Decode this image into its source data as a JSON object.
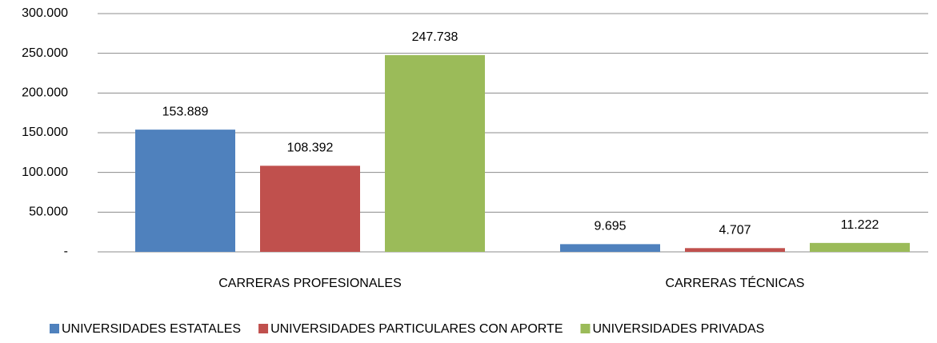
{
  "chart_data": {
    "type": "bar",
    "categories": [
      "CARRERAS PROFESIONALES",
      "CARRERAS TÉCNICAS"
    ],
    "series": [
      {
        "name": "UNIVERSIDADES ESTATALES",
        "color": "#4f81bd",
        "values": [
          153889,
          9695
        ],
        "value_labels": [
          "153.889",
          "9.695"
        ]
      },
      {
        "name": "UNIVERSIDADES PARTICULARES CON APORTE",
        "color": "#c0504d",
        "values": [
          108392,
          4707
        ],
        "value_labels": [
          "108.392",
          "4.707"
        ]
      },
      {
        "name": "UNIVERSIDADES PRIVADAS",
        "color": "#9bbb59",
        "values": [
          247738,
          11222
        ],
        "value_labels": [
          "247.738",
          "11.222"
        ]
      }
    ],
    "ylim": [
      0,
      300000
    ],
    "yticks": [
      {
        "value": 0,
        "label": "-"
      },
      {
        "value": 50000,
        "label": "50.000"
      },
      {
        "value": 100000,
        "label": "100.000"
      },
      {
        "value": 150000,
        "label": "150.000"
      },
      {
        "value": 200000,
        "label": "200.000"
      },
      {
        "value": 250000,
        "label": "250.000"
      },
      {
        "value": 300000,
        "label": "300.000"
      }
    ],
    "grid": true,
    "legend": "bottom"
  }
}
